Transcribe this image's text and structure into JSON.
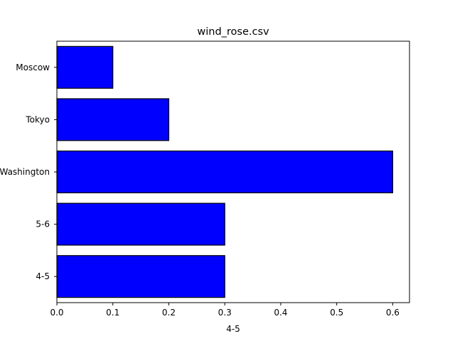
{
  "chart_data": {
    "type": "bar",
    "orientation": "horizontal",
    "title": "wind_rose.csv",
    "xlabel": "4-5",
    "ylabel": "",
    "categories": [
      "4-5",
      "5-6",
      "Washington",
      "Tokyo",
      "Moscow"
    ],
    "values": [
      0.3,
      0.3,
      0.6,
      0.2,
      0.1
    ],
    "xlim": [
      0,
      0.63
    ],
    "xticks": [
      0.0,
      0.1,
      0.2,
      0.3,
      0.4,
      0.5,
      0.6
    ],
    "xtick_labels": [
      "0.0",
      "0.1",
      "0.2",
      "0.3",
      "0.4",
      "0.5",
      "0.6"
    ],
    "grid": false,
    "legend": "none",
    "bar_color": "#0000ff",
    "edge_color": "#000000"
  }
}
